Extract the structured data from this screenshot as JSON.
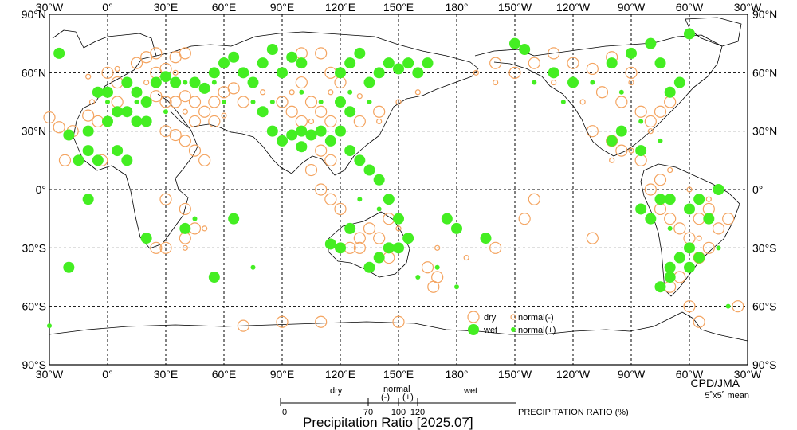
{
  "top_lon_labels": [
    "30°W",
    "0°",
    "30°E",
    "60°E",
    "90°E",
    "120°E",
    "150°E",
    "180°",
    "150°W",
    "120°W",
    "90°W",
    "60°W",
    "30°W"
  ],
  "bottom_lon_labels": [
    "30°W",
    "0°",
    "30°E",
    "60°E",
    "90°E",
    "120°E",
    "150°E",
    "180°",
    "150°W",
    "120°W",
    "90°W",
    "60°W",
    "30°W"
  ],
  "left_lat_labels": [
    "90°N",
    "60°N",
    "30°N",
    "0°",
    "30°S",
    "60°S",
    "90°S"
  ],
  "right_lat_labels": [
    "90°N",
    "60°N",
    "30°N",
    "0°",
    "30°S",
    "60°S",
    "90°S"
  ],
  "legend": {
    "dry": "dry",
    "wet": "wet",
    "normal_minus": "normal(-)",
    "normal_plus": "normal(+)",
    "colors": {
      "dry": "#f4a460",
      "wet": "#44ee22"
    }
  },
  "credit": {
    "agency": "CPD/JMA",
    "grid": "5˚x5˚ mean"
  },
  "scale": {
    "dry": "dry",
    "normal": "normal",
    "minus": "(-)",
    "plus": "(+)",
    "wet": "wet",
    "ticks": [
      "0",
      "70",
      "100",
      "120"
    ],
    "units": "PRECIPITATION RATIO  (%)"
  },
  "title": "Precipitation Ratio [2025.07]",
  "stations": {
    "dry": [
      [
        -30,
        37
      ],
      [
        -25,
        32
      ],
      [
        -22,
        15
      ],
      [
        -18,
        30
      ],
      [
        -10,
        38
      ],
      [
        -5,
        35
      ],
      [
        -3,
        15
      ],
      [
        0,
        60
      ],
      [
        5,
        55
      ],
      [
        5,
        45
      ],
      [
        15,
        65
      ],
      [
        20,
        68
      ],
      [
        25,
        70
      ],
      [
        25,
        60
      ],
      [
        30,
        62
      ],
      [
        35,
        68
      ],
      [
        40,
        70
      ],
      [
        25,
        48
      ],
      [
        30,
        45
      ],
      [
        35,
        45
      ],
      [
        40,
        48
      ],
      [
        45,
        45
      ],
      [
        50,
        40
      ],
      [
        55,
        45
      ],
      [
        60,
        50
      ],
      [
        65,
        52
      ],
      [
        70,
        45
      ],
      [
        45,
        35
      ],
      [
        55,
        35
      ],
      [
        30,
        30
      ],
      [
        35,
        28
      ],
      [
        40,
        25
      ],
      [
        45,
        20
      ],
      [
        50,
        15
      ],
      [
        30,
        -5
      ],
      [
        40,
        -10
      ],
      [
        45,
        -20
      ],
      [
        40,
        -25
      ],
      [
        30,
        -30
      ],
      [
        25,
        -30
      ],
      [
        100,
        70
      ],
      [
        110,
        70
      ],
      [
        115,
        60
      ],
      [
        120,
        55
      ],
      [
        100,
        55
      ],
      [
        90,
        45
      ],
      [
        95,
        40
      ],
      [
        100,
        35
      ],
      [
        105,
        45
      ],
      [
        110,
        40
      ],
      [
        115,
        35
      ],
      [
        130,
        35
      ],
      [
        140,
        40
      ],
      [
        110,
        20
      ],
      [
        115,
        15
      ],
      [
        105,
        10
      ],
      [
        110,
        0
      ],
      [
        115,
        -5
      ],
      [
        120,
        -10
      ],
      [
        130,
        -25
      ],
      [
        135,
        -20
      ],
      [
        140,
        -25
      ],
      [
        145,
        -15
      ],
      [
        125,
        -30
      ],
      [
        130,
        -30
      ],
      [
        145,
        -35
      ],
      [
        165,
        -40
      ],
      [
        170,
        -45
      ],
      [
        168,
        -50
      ],
      [
        220,
        -5
      ],
      [
        215,
        -15
      ],
      [
        250,
        -25
      ],
      [
        200,
        -30
      ],
      [
        -160,
        65
      ],
      [
        -150,
        60
      ],
      [
        -140,
        65
      ],
      [
        -130,
        70
      ],
      [
        -120,
        65
      ],
      [
        -110,
        62
      ],
      [
        -100,
        68
      ],
      [
        -90,
        60
      ],
      [
        -105,
        50
      ],
      [
        -95,
        45
      ],
      [
        -85,
        40
      ],
      [
        -80,
        35
      ],
      [
        -75,
        40
      ],
      [
        -70,
        45
      ],
      [
        -110,
        30
      ],
      [
        -100,
        25
      ],
      [
        -95,
        20
      ],
      [
        -85,
        15
      ],
      [
        -75,
        5
      ],
      [
        -80,
        0
      ],
      [
        -75,
        -10
      ],
      [
        -70,
        -15
      ],
      [
        -65,
        -20
      ],
      [
        -60,
        -25
      ],
      [
        -55,
        -15
      ],
      [
        -50,
        -10
      ],
      [
        -45,
        -20
      ],
      [
        -40,
        -15
      ],
      [
        -50,
        -30
      ],
      [
        -55,
        -35
      ],
      [
        -65,
        -45
      ],
      [
        -70,
        -50
      ],
      [
        -60,
        -60
      ],
      [
        -35,
        -60
      ],
      [
        70,
        -70
      ],
      [
        90,
        -68
      ],
      [
        110,
        -68
      ],
      [
        150,
        -68
      ],
      [
        -55,
        -68
      ]
    ],
    "wet": [
      [
        -25,
        70
      ],
      [
        -20,
        28
      ],
      [
        -15,
        15
      ],
      [
        -10,
        20
      ],
      [
        -5,
        15
      ],
      [
        0,
        50
      ],
      [
        5,
        40
      ],
      [
        10,
        40
      ],
      [
        0,
        35
      ],
      [
        -5,
        50
      ],
      [
        10,
        55
      ],
      [
        15,
        50
      ],
      [
        20,
        45
      ],
      [
        25,
        55
      ],
      [
        30,
        58
      ],
      [
        35,
        55
      ],
      [
        15,
        35
      ],
      [
        20,
        35
      ],
      [
        5,
        20
      ],
      [
        10,
        15
      ],
      [
        -10,
        30
      ],
      [
        45,
        55
      ],
      [
        50,
        52
      ],
      [
        55,
        60
      ],
      [
        60,
        65
      ],
      [
        65,
        68
      ],
      [
        70,
        60
      ],
      [
        75,
        55
      ],
      [
        80,
        40
      ],
      [
        85,
        30
      ],
      [
        90,
        25
      ],
      [
        95,
        28
      ],
      [
        100,
        30
      ],
      [
        90,
        60
      ],
      [
        95,
        68
      ],
      [
        100,
        65
      ],
      [
        85,
        72
      ],
      [
        80,
        65
      ],
      [
        120,
        60
      ],
      [
        125,
        65
      ],
      [
        130,
        70
      ],
      [
        135,
        55
      ],
      [
        140,
        60
      ],
      [
        145,
        65
      ],
      [
        150,
        62
      ],
      [
        155,
        65
      ],
      [
        160,
        60
      ],
      [
        165,
        65
      ],
      [
        120,
        45
      ],
      [
        125,
        40
      ],
      [
        120,
        30
      ],
      [
        115,
        25
      ],
      [
        110,
        30
      ],
      [
        105,
        28
      ],
      [
        100,
        22
      ],
      [
        125,
        20
      ],
      [
        130,
        15
      ],
      [
        135,
        10
      ],
      [
        140,
        5
      ],
      [
        145,
        -5
      ],
      [
        150,
        -15
      ],
      [
        155,
        -25
      ],
      [
        150,
        -30
      ],
      [
        145,
        -30
      ],
      [
        140,
        -35
      ],
      [
        135,
        -40
      ],
      [
        125,
        -20
      ],
      [
        120,
        -30
      ],
      [
        115,
        -28
      ],
      [
        175,
        -15
      ],
      [
        180,
        -20
      ],
      [
        195,
        -25
      ],
      [
        -150,
        75
      ],
      [
        -145,
        72
      ],
      [
        -130,
        60
      ],
      [
        -120,
        55
      ],
      [
        -100,
        65
      ],
      [
        -90,
        70
      ],
      [
        -80,
        75
      ],
      [
        -75,
        65
      ],
      [
        -60,
        80
      ],
      [
        -65,
        55
      ],
      [
        -70,
        50
      ],
      [
        -85,
        20
      ],
      [
        -95,
        30
      ],
      [
        -100,
        25
      ],
      [
        -75,
        -5
      ],
      [
        -70,
        -5
      ],
      [
        -60,
        -10
      ],
      [
        -55,
        -5
      ],
      [
        -50,
        -15
      ],
      [
        -45,
        0
      ],
      [
        -60,
        -30
      ],
      [
        -55,
        -35
      ],
      [
        -65,
        -35
      ],
      [
        -70,
        -40
      ],
      [
        -60,
        -40
      ],
      [
        -75,
        -50
      ],
      [
        -70,
        -45
      ],
      [
        65,
        -15
      ],
      [
        55,
        -45
      ],
      [
        40,
        -20
      ],
      [
        20,
        -25
      ],
      [
        -10,
        -5
      ],
      [
        -20,
        -40
      ],
      [
        -80,
        -15
      ],
      [
        -85,
        -10
      ]
    ],
    "normal_minus": [
      [
        -10,
        58
      ],
      [
        -8,
        45
      ],
      [
        5,
        62
      ],
      [
        20,
        55
      ],
      [
        35,
        60
      ],
      [
        40,
        40
      ],
      [
        60,
        38
      ],
      [
        80,
        50
      ],
      [
        95,
        50
      ],
      [
        105,
        35
      ],
      [
        115,
        50
      ],
      [
        130,
        48
      ],
      [
        140,
        35
      ],
      [
        150,
        45
      ],
      [
        160,
        50
      ],
      [
        -170,
        60
      ],
      [
        -160,
        55
      ],
      [
        -130,
        55
      ],
      [
        -115,
        45
      ],
      [
        -90,
        55
      ],
      [
        -80,
        30
      ],
      [
        -90,
        20
      ],
      [
        -100,
        15
      ],
      [
        -70,
        10
      ],
      [
        -60,
        0
      ],
      [
        -55,
        -25
      ],
      [
        -50,
        -5
      ],
      [
        40,
        -30
      ],
      [
        50,
        -20
      ],
      [
        150,
        -20
      ],
      [
        170,
        -30
      ],
      [
        185,
        -35
      ]
    ],
    "normal_plus": [
      [
        0,
        45
      ],
      [
        15,
        45
      ],
      [
        30,
        40
      ],
      [
        40,
        55
      ],
      [
        55,
        55
      ],
      [
        60,
        45
      ],
      [
        75,
        45
      ],
      [
        85,
        45
      ],
      [
        100,
        50
      ],
      [
        110,
        45
      ],
      [
        125,
        50
      ],
      [
        135,
        45
      ],
      [
        -140,
        55
      ],
      [
        -125,
        45
      ],
      [
        -110,
        55
      ],
      [
        -95,
        50
      ],
      [
        -85,
        35
      ],
      [
        -75,
        25
      ],
      [
        -70,
        -20
      ],
      [
        -60,
        -10
      ],
      [
        -45,
        -30
      ],
      [
        130,
        -5
      ],
      [
        140,
        -10
      ],
      [
        160,
        -45
      ],
      [
        170,
        -40
      ],
      [
        180,
        -50
      ],
      [
        75,
        -40
      ],
      [
        45,
        -15
      ],
      [
        -30,
        -70
      ],
      [
        -40,
        -60
      ]
    ]
  }
}
